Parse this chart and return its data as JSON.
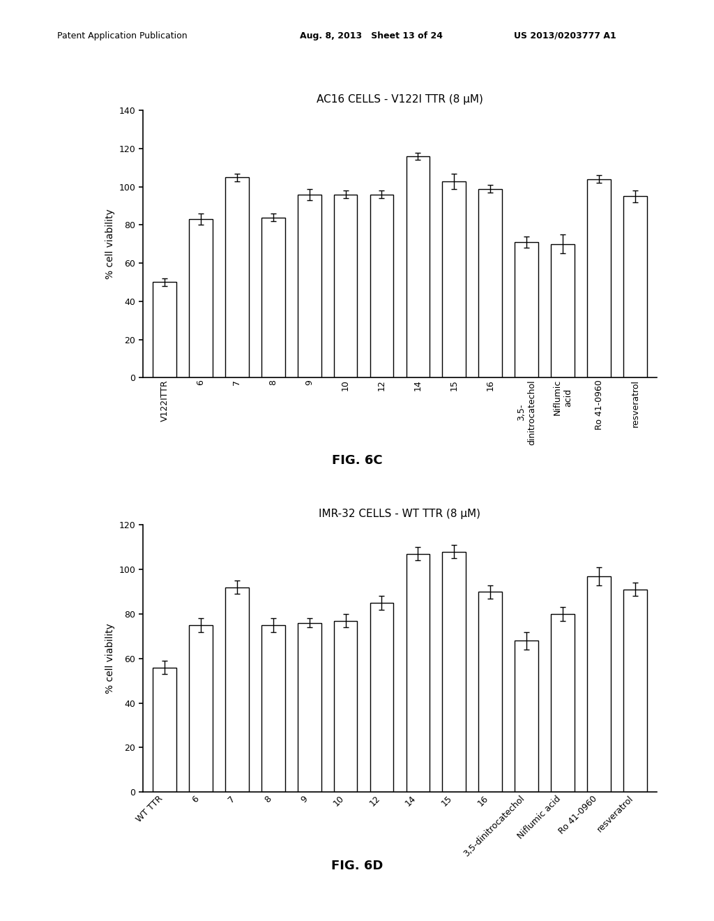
{
  "fig6c": {
    "title": "AC16 CELLS - V122I TTR (8 μM)",
    "ylabel": "% cell viability",
    "ylim": [
      0,
      140
    ],
    "yticks": [
      0,
      20,
      40,
      60,
      80,
      100,
      120,
      140
    ],
    "categories": [
      "V122ITTR",
      "6",
      "7",
      "8",
      "9",
      "10",
      "12",
      "14",
      "15",
      "16",
      "3,5-\ndinitrocatechol",
      "Niflumic\nacid",
      "Ro 41-0960",
      "resveratrol"
    ],
    "values": [
      50,
      83,
      105,
      84,
      96,
      96,
      96,
      116,
      103,
      99,
      71,
      70,
      104,
      95
    ],
    "errors": [
      2,
      3,
      2,
      2,
      3,
      2,
      2,
      2,
      4,
      2,
      3,
      5,
      2,
      3
    ]
  },
  "fig6d": {
    "title": "IMR-32 CELLS - WT TTR (8 μM)",
    "ylabel": "% cell viability",
    "ylim": [
      0,
      120
    ],
    "yticks": [
      0,
      20,
      40,
      60,
      80,
      100,
      120
    ],
    "categories": [
      "WT TTR",
      "6",
      "7",
      "8",
      "9",
      "10",
      "12",
      "14",
      "15",
      "16",
      "3,5-dinitrocatechol",
      "Niflumic acid",
      "Ro 41-0960",
      "resveratrol"
    ],
    "values": [
      56,
      75,
      92,
      75,
      76,
      77,
      85,
      107,
      108,
      90,
      68,
      80,
      97,
      91
    ],
    "errors": [
      3,
      3,
      3,
      3,
      2,
      3,
      3,
      3,
      3,
      3,
      4,
      3,
      4,
      3
    ]
  },
  "header_left": "Patent Application Publication",
  "header_mid": "Aug. 8, 2013   Sheet 13 of 24",
  "header_right": "US 2013/0203777 A1",
  "fig6c_label": "FIG. 6C",
  "fig6d_label": "FIG. 6D",
  "bar_color": "white",
  "bar_edgecolor": "black",
  "background_color": "white"
}
